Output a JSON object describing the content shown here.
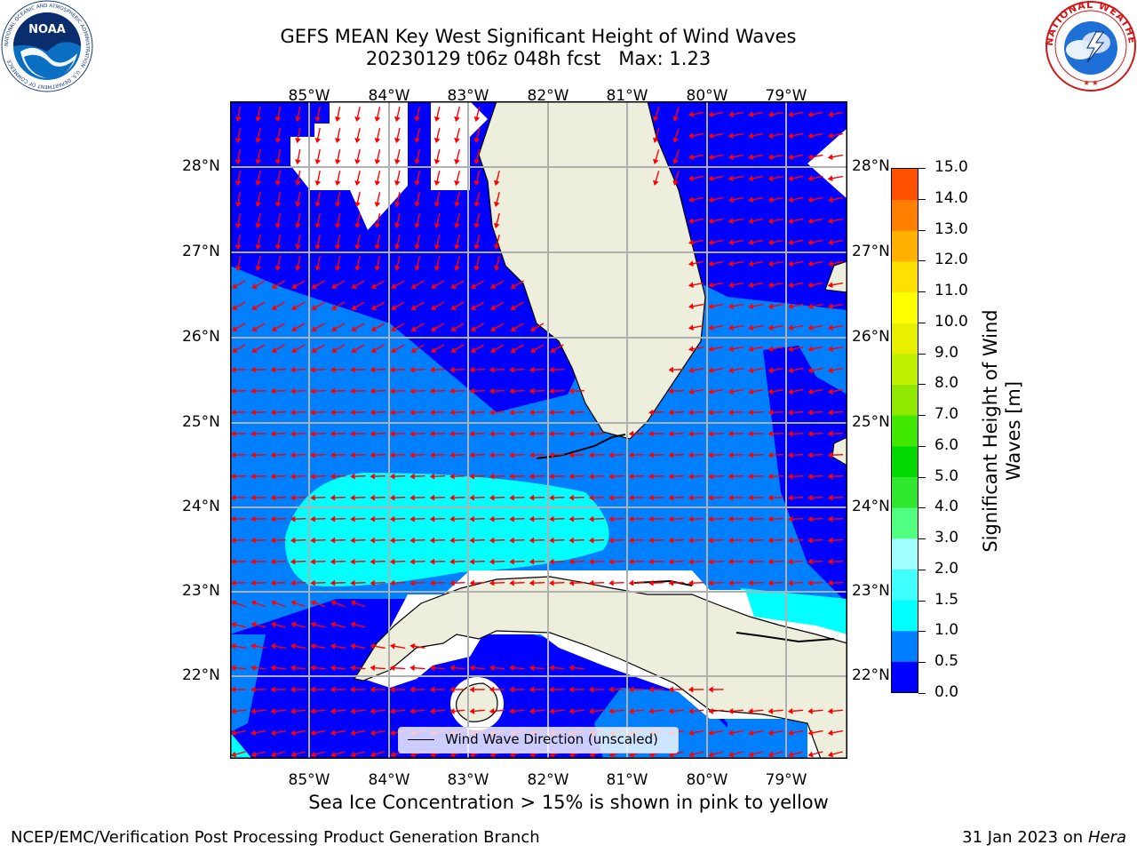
{
  "header": {
    "title_line1": "GEFS MEAN Key West Significant Height of Wind Waves",
    "title_line2": "20230129 t06z 048h fcst",
    "max_label": "Max: 1.23",
    "left_logo_text": "NOAA",
    "left_logo_ring": "NATIONAL OCEANIC AND ATMOSPHERIC ADMINISTRATION · U.S. DEPARTMENT OF COMMERCE",
    "right_logo_ring": "NATIONAL WEATHER SERVICE"
  },
  "map": {
    "lon_labels": [
      "85°W",
      "84°W",
      "83°W",
      "82°W",
      "81°W",
      "80°W",
      "79°W"
    ],
    "lat_labels": [
      "28°N",
      "27°N",
      "26°N",
      "25°N",
      "24°N",
      "23°N",
      "22°N"
    ],
    "land_color": "#eeeedd",
    "arrow_color": "#ff0000",
    "legend_label": "Wind Wave Direction (unscaled)"
  },
  "colorbar": {
    "title_line1": "Significant Height of Wind",
    "title_line2": "Waves [m]",
    "ticks": [
      "15.0",
      "14.0",
      "13.0",
      "12.0",
      "11.0",
      "10.0",
      "9.0",
      "8.0",
      "7.0",
      "6.0",
      "5.0",
      "4.0",
      "3.0",
      "2.0",
      "1.5",
      "1.0",
      "0.5",
      "0.0"
    ],
    "colors_bottom_to_top": [
      "#0000ff",
      "#0080ff",
      "#00ffff",
      "#40ffff",
      "#a0ffff",
      "#50ff80",
      "#2ee82e",
      "#00d800",
      "#40e800",
      "#90e800",
      "#c0f000",
      "#e8f000",
      "#ffff00",
      "#ffe000",
      "#ffb000",
      "#ff8000",
      "#ff5000",
      "#ff2000",
      "#ff0000"
    ]
  },
  "notes": {
    "sea_ice": "Sea Ice Concentration > 15% is shown in pink to yellow",
    "footer_left": "NCEP/EMC/Verification Post Processing Product Generation Branch",
    "footer_date": "31 Jan 2023 on",
    "footer_machine": "Hera"
  }
}
